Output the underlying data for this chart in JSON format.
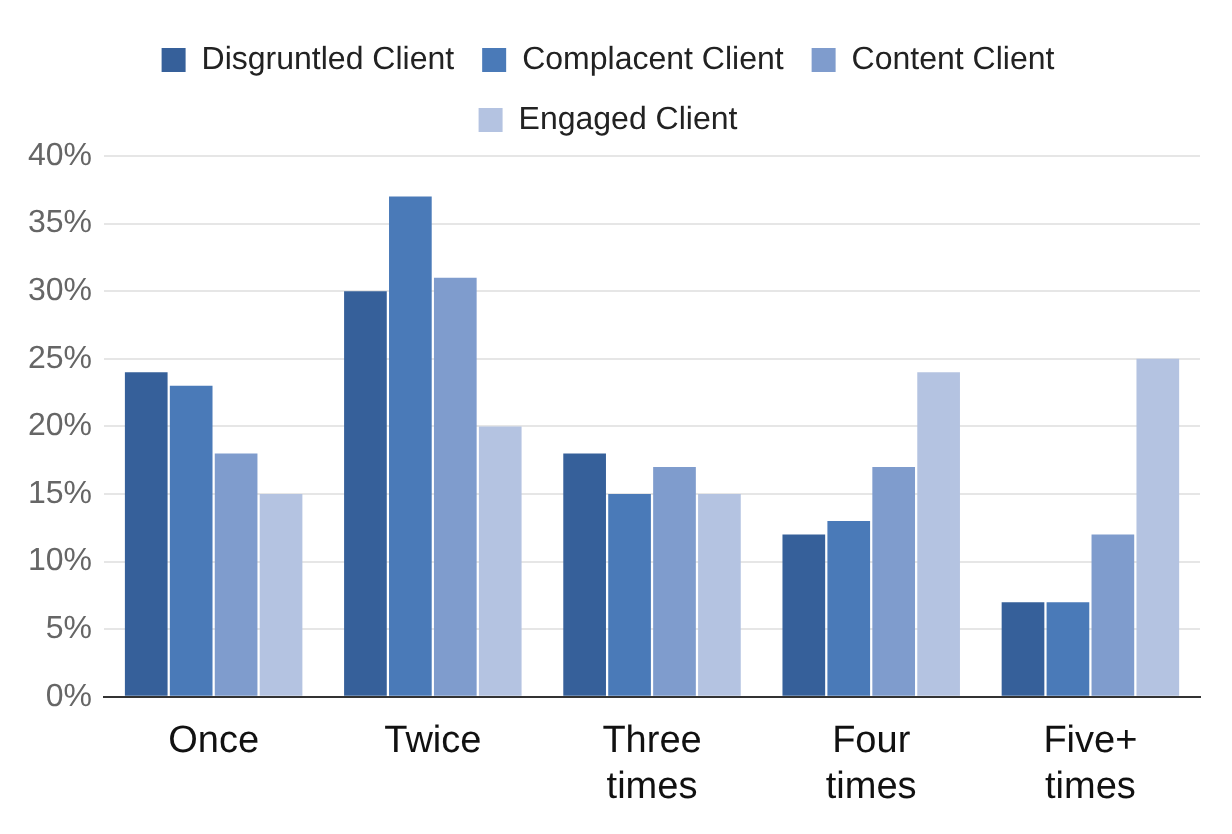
{
  "chart_data": {
    "type": "bar",
    "categories": [
      "Once",
      "Twice",
      "Three times",
      "Four times",
      "Five+ times"
    ],
    "series": [
      {
        "name": "Disgruntled Client",
        "color": "#36609a",
        "values": [
          24,
          30,
          18,
          12,
          7
        ]
      },
      {
        "name": "Complacent Client",
        "color": "#4a7ab8",
        "values": [
          23,
          37,
          15,
          13,
          7
        ]
      },
      {
        "name": "Content Client",
        "color": "#7f9ccd",
        "values": [
          18,
          31,
          17,
          17,
          12
        ]
      },
      {
        "name": "Engaged Client",
        "color": "#b4c3e1",
        "values": [
          15,
          20,
          15,
          24,
          25
        ]
      }
    ],
    "ylim": [
      0,
      40
    ],
    "yticks": [
      {
        "value": 0,
        "label": "0%"
      },
      {
        "value": 5,
        "label": "5%"
      },
      {
        "value": 10,
        "label": "10%"
      },
      {
        "value": 15,
        "label": "15%"
      },
      {
        "value": 20,
        "label": "20%"
      },
      {
        "value": 25,
        "label": "25%"
      },
      {
        "value": 30,
        "label": "30%"
      },
      {
        "value": 35,
        "label": "35%"
      },
      {
        "value": 40,
        "label": "40%"
      }
    ],
    "grid": "y",
    "legend": "top"
  }
}
